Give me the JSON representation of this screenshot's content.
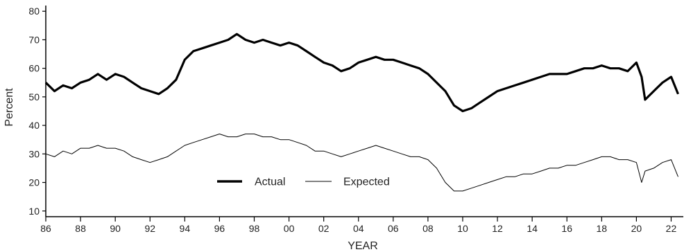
{
  "chart_data": {
    "type": "line",
    "xlabel": "YEAR",
    "ylabel": "Percent",
    "xlim": [
      1986,
      2022.7
    ],
    "ylim": [
      8,
      82
    ],
    "x_ticks": [
      1986,
      1988,
      1990,
      1992,
      1994,
      1996,
      1998,
      2000,
      2002,
      2004,
      2006,
      2008,
      2010,
      2012,
      2014,
      2016,
      2018,
      2020,
      2022
    ],
    "x_tick_labels": [
      "86",
      "88",
      "90",
      "92",
      "94",
      "96",
      "98",
      "00",
      "02",
      "04",
      "06",
      "08",
      "10",
      "12",
      "14",
      "16",
      "18",
      "20",
      "22"
    ],
    "y_ticks": [
      10,
      20,
      30,
      40,
      50,
      60,
      70,
      80
    ],
    "y_tick_labels": [
      "10",
      "20",
      "30",
      "40",
      "50",
      "60",
      "70",
      "80"
    ],
    "grid": false,
    "legend": {
      "placement": "bottom-center"
    },
    "series": [
      {
        "name": "Actual",
        "color": "#000000",
        "x": [
          1986.0,
          1986.5,
          1987.0,
          1987.5,
          1988.0,
          1988.5,
          1989.0,
          1989.5,
          1990.0,
          1990.5,
          1991.0,
          1991.5,
          1992.0,
          1992.5,
          1993.0,
          1993.5,
          1994.0,
          1994.5,
          1995.0,
          1995.5,
          1996.0,
          1996.5,
          1997.0,
          1997.5,
          1998.0,
          1998.5,
          1999.0,
          1999.5,
          2000.0,
          2000.5,
          2001.0,
          2001.5,
          2002.0,
          2002.5,
          2003.0,
          2003.5,
          2004.0,
          2004.5,
          2005.0,
          2005.5,
          2006.0,
          2006.5,
          2007.0,
          2007.5,
          2008.0,
          2008.5,
          2009.0,
          2009.5,
          2010.0,
          2010.5,
          2011.0,
          2011.5,
          2012.0,
          2012.5,
          2013.0,
          2013.5,
          2014.0,
          2014.5,
          2015.0,
          2015.5,
          2016.0,
          2016.5,
          2017.0,
          2017.5,
          2018.0,
          2018.5,
          2019.0,
          2019.5,
          2020.0,
          2020.3,
          2020.5,
          2021.0,
          2021.5,
          2022.0,
          2022.4
        ],
        "values": [
          55,
          52,
          54,
          53,
          55,
          56,
          58,
          56,
          58,
          57,
          55,
          53,
          52,
          51,
          53,
          56,
          63,
          66,
          67,
          68,
          69,
          70,
          72,
          70,
          69,
          70,
          69,
          68,
          69,
          68,
          66,
          64,
          62,
          61,
          59,
          60,
          62,
          63,
          64,
          63,
          63,
          62,
          61,
          60,
          58,
          55,
          52,
          47,
          45,
          46,
          48,
          50,
          52,
          53,
          54,
          55,
          56,
          57,
          58,
          58,
          58,
          59,
          60,
          60,
          61,
          60,
          60,
          59,
          62,
          57,
          49,
          52,
          55,
          57,
          51
        ]
      },
      {
        "name": "Expected",
        "color": "#000000",
        "x": [
          1986.0,
          1986.5,
          1987.0,
          1987.5,
          1988.0,
          1988.5,
          1989.0,
          1989.5,
          1990.0,
          1990.5,
          1991.0,
          1991.5,
          1992.0,
          1992.5,
          1993.0,
          1993.5,
          1994.0,
          1994.5,
          1995.0,
          1995.5,
          1996.0,
          1996.5,
          1997.0,
          1997.5,
          1998.0,
          1998.5,
          1999.0,
          1999.5,
          2000.0,
          2000.5,
          2001.0,
          2001.5,
          2002.0,
          2002.5,
          2003.0,
          2003.5,
          2004.0,
          2004.5,
          2005.0,
          2005.5,
          2006.0,
          2006.5,
          2007.0,
          2007.5,
          2008.0,
          2008.5,
          2009.0,
          2009.5,
          2010.0,
          2010.5,
          2011.0,
          2011.5,
          2012.0,
          2012.5,
          2013.0,
          2013.5,
          2014.0,
          2014.5,
          2015.0,
          2015.5,
          2016.0,
          2016.5,
          2017.0,
          2017.5,
          2018.0,
          2018.5,
          2019.0,
          2019.5,
          2020.0,
          2020.3,
          2020.5,
          2021.0,
          2021.5,
          2022.0,
          2022.4
        ],
        "values": [
          30,
          29,
          31,
          30,
          32,
          32,
          33,
          32,
          32,
          31,
          29,
          28,
          27,
          28,
          29,
          31,
          33,
          34,
          35,
          36,
          37,
          36,
          36,
          37,
          37,
          36,
          36,
          35,
          35,
          34,
          33,
          31,
          31,
          30,
          29,
          30,
          31,
          32,
          33,
          32,
          31,
          30,
          29,
          29,
          28,
          25,
          20,
          17,
          17,
          18,
          19,
          20,
          21,
          22,
          22,
          23,
          23,
          24,
          25,
          25,
          26,
          26,
          27,
          28,
          29,
          29,
          28,
          28,
          27,
          20,
          24,
          25,
          27,
          28,
          22
        ]
      }
    ]
  }
}
